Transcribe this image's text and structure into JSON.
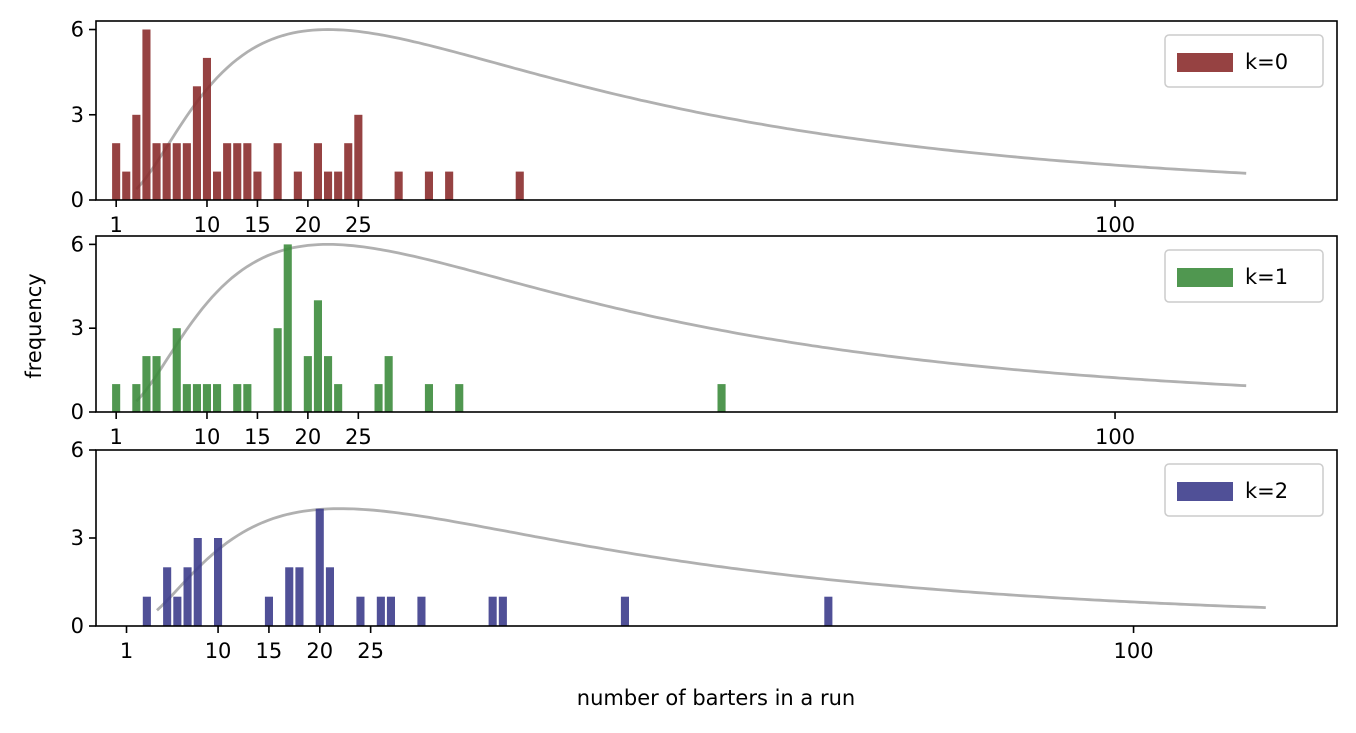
{
  "figure": {
    "ylabel": "frequency",
    "xlabel": "number of barters in a run"
  },
  "chart_data": [
    {
      "type": "bar",
      "legend": "k=0",
      "color": "#8b2d2d",
      "curve_color": "#b0b0b0",
      "xlim": [
        -1,
        122
      ],
      "ylim": [
        0,
        6.3
      ],
      "xticks": [
        1,
        10,
        15,
        20,
        25,
        100
      ],
      "yticks": [
        0,
        3,
        6
      ],
      "bars": [
        {
          "x": 1,
          "y": 2
        },
        {
          "x": 2,
          "y": 1
        },
        {
          "x": 3,
          "y": 3
        },
        {
          "x": 4,
          "y": 6
        },
        {
          "x": 5,
          "y": 2
        },
        {
          "x": 6,
          "y": 2
        },
        {
          "x": 7,
          "y": 2
        },
        {
          "x": 8,
          "y": 2
        },
        {
          "x": 9,
          "y": 4
        },
        {
          "x": 10,
          "y": 5
        },
        {
          "x": 11,
          "y": 1
        },
        {
          "x": 12,
          "y": 2
        },
        {
          "x": 13,
          "y": 2
        },
        {
          "x": 14,
          "y": 2
        },
        {
          "x": 15,
          "y": 1
        },
        {
          "x": 17,
          "y": 2
        },
        {
          "x": 19,
          "y": 1
        },
        {
          "x": 21,
          "y": 2
        },
        {
          "x": 22,
          "y": 1
        },
        {
          "x": 23,
          "y": 1
        },
        {
          "x": 24,
          "y": 2
        },
        {
          "x": 25,
          "y": 3
        },
        {
          "x": 29,
          "y": 1
        },
        {
          "x": 32,
          "y": 1
        },
        {
          "x": 34,
          "y": 1
        },
        {
          "x": 41,
          "y": 1
        }
      ],
      "curve": {
        "peak_x": 22,
        "peak_y": 6,
        "x_start": 3,
        "x_end": 113
      }
    },
    {
      "type": "bar",
      "legend": "k=1",
      "color": "#3d8c3d",
      "curve_color": "#b0b0b0",
      "xlim": [
        -1,
        122
      ],
      "ylim": [
        0,
        6.3
      ],
      "xticks": [
        1,
        10,
        15,
        20,
        25,
        100
      ],
      "yticks": [
        0,
        3,
        6
      ],
      "bars": [
        {
          "x": 1,
          "y": 1
        },
        {
          "x": 3,
          "y": 1
        },
        {
          "x": 4,
          "y": 2
        },
        {
          "x": 5,
          "y": 2
        },
        {
          "x": 7,
          "y": 3
        },
        {
          "x": 8,
          "y": 1
        },
        {
          "x": 9,
          "y": 1
        },
        {
          "x": 10,
          "y": 1
        },
        {
          "x": 11,
          "y": 1
        },
        {
          "x": 13,
          "y": 1
        },
        {
          "x": 14,
          "y": 1
        },
        {
          "x": 17,
          "y": 3
        },
        {
          "x": 18,
          "y": 6
        },
        {
          "x": 20,
          "y": 2
        },
        {
          "x": 21,
          "y": 4
        },
        {
          "x": 22,
          "y": 2
        },
        {
          "x": 23,
          "y": 1
        },
        {
          "x": 27,
          "y": 1
        },
        {
          "x": 28,
          "y": 2
        },
        {
          "x": 32,
          "y": 1
        },
        {
          "x": 35,
          "y": 1
        },
        {
          "x": 61,
          "y": 1
        }
      ],
      "curve": {
        "peak_x": 22,
        "peak_y": 6,
        "x_start": 3,
        "x_end": 113
      }
    },
    {
      "type": "bar",
      "legend": "k=2",
      "color": "#3d3d8c",
      "curve_color": "#b0b0b0",
      "xlim": [
        -2,
        120
      ],
      "ylim": [
        0,
        6
      ],
      "xticks": [
        1,
        10,
        15,
        20,
        25,
        100
      ],
      "yticks": [
        0,
        3,
        6
      ],
      "bars": [
        {
          "x": 3,
          "y": 1
        },
        {
          "x": 5,
          "y": 2
        },
        {
          "x": 6,
          "y": 1
        },
        {
          "x": 7,
          "y": 2
        },
        {
          "x": 8,
          "y": 3
        },
        {
          "x": 10,
          "y": 3
        },
        {
          "x": 15,
          "y": 1
        },
        {
          "x": 17,
          "y": 2
        },
        {
          "x": 18,
          "y": 2
        },
        {
          "x": 20,
          "y": 4
        },
        {
          "x": 21,
          "y": 2
        },
        {
          "x": 24,
          "y": 1
        },
        {
          "x": 26,
          "y": 1
        },
        {
          "x": 27,
          "y": 1
        },
        {
          "x": 30,
          "y": 1
        },
        {
          "x": 37,
          "y": 1
        },
        {
          "x": 38,
          "y": 1
        },
        {
          "x": 50,
          "y": 1
        },
        {
          "x": 70,
          "y": 1
        }
      ],
      "curve": {
        "peak_x": 22,
        "peak_y": 4,
        "x_start": 4,
        "x_end": 113
      }
    }
  ]
}
